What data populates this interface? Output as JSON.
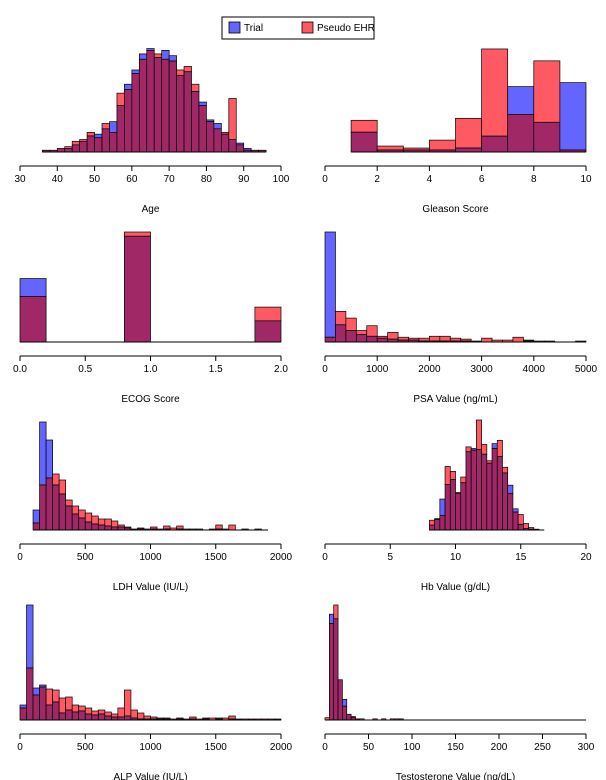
{
  "colors": {
    "trial": "#6464ff",
    "ehr": "#ff5a64",
    "overlap": "#a02866",
    "outline": "#000000"
  },
  "legend": {
    "trial": "Trial",
    "ehr": "Pseudo EHR"
  },
  "chart_data": [
    {
      "type": "histogram",
      "xlabel": "Age",
      "ticks": [
        30,
        40,
        50,
        60,
        70,
        80,
        90,
        100
      ],
      "xlim": [
        30,
        100
      ],
      "bins": [
        36,
        38,
        40,
        42,
        44,
        46,
        48,
        50,
        52,
        54,
        56,
        58,
        60,
        62,
        64,
        66,
        68,
        70,
        72,
        74,
        76,
        78,
        80,
        82,
        84,
        86,
        88,
        90,
        92,
        94,
        96
      ],
      "trial": [
        1,
        1,
        2,
        2,
        4,
        6,
        9,
        10,
        13,
        17,
        26,
        38,
        46,
        55,
        58,
        53,
        57,
        54,
        43,
        45,
        34,
        28,
        18,
        16,
        10,
        7,
        5,
        2,
        1,
        1
      ],
      "ehr": [
        1,
        1,
        2,
        3,
        6,
        7,
        11,
        8,
        16,
        11,
        33,
        35,
        44,
        52,
        57,
        55,
        52,
        51,
        46,
        48,
        38,
        26,
        17,
        13,
        11,
        30,
        4,
        1,
        1,
        1
      ],
      "ymax": 60
    },
    {
      "type": "histogram",
      "xlabel": "Gleason Score",
      "ticks": [
        0,
        2,
        4,
        6,
        8,
        10
      ],
      "xlim": [
        0,
        10
      ],
      "bins": [
        1,
        2,
        3,
        4,
        5,
        6,
        7,
        8,
        9,
        10
      ],
      "trial": [
        10,
        1,
        1,
        1,
        2,
        8,
        33,
        15,
        35
      ],
      "ehr": [
        16,
        3,
        2,
        6,
        17,
        52,
        19,
        46,
        1
      ],
      "ymax": 54
    },
    {
      "type": "histogram",
      "xlabel": "ECOG Score",
      "ticks": [
        0.0,
        0.5,
        1.0,
        1.5,
        2.0
      ],
      "tickfmt": 1,
      "xlim": [
        0,
        2
      ],
      "bins": [
        0,
        0.2,
        0.4,
        0.6,
        0.8,
        1.0,
        1.2,
        1.4,
        1.6,
        1.8,
        2.0
      ],
      "trial": [
        60,
        0,
        0,
        0,
        100,
        0,
        0,
        0,
        0,
        20
      ],
      "ehr": [
        43,
        0,
        0,
        0,
        104,
        0,
        0,
        0,
        0,
        33
      ],
      "ymax": 104
    },
    {
      "type": "histogram",
      "xlabel": "PSA Value (ng/mL)",
      "ticks": [
        0,
        1000,
        2000,
        3000,
        4000,
        5000
      ],
      "xlim": [
        0,
        5000
      ],
      "bins": [
        0,
        200,
        400,
        600,
        800,
        1000,
        1200,
        1400,
        1600,
        1800,
        2000,
        2200,
        2400,
        2600,
        2800,
        3000,
        3200,
        3400,
        3600,
        3800,
        4000,
        4200,
        4400,
        4600,
        4800,
        5000
      ],
      "trial": [
        115,
        18,
        12,
        8,
        6,
        4,
        3,
        2,
        2,
        1,
        1,
        1,
        1,
        1,
        1,
        0,
        0,
        0,
        0,
        1,
        0,
        0,
        0,
        0,
        0
      ],
      "ehr": [
        5,
        32,
        25,
        12,
        17,
        6,
        10,
        5,
        4,
        4,
        6,
        6,
        4,
        3,
        1,
        4,
        2,
        2,
        5,
        2,
        1,
        1,
        0,
        0,
        1
      ],
      "ymax": 115
    },
    {
      "type": "histogram",
      "xlabel": "LDH Value (IU/L)",
      "ticks": [
        0,
        500,
        1000,
        1500,
        2000
      ],
      "xlim": [
        0,
        2000
      ],
      "bins": [
        100,
        150,
        200,
        250,
        300,
        350,
        400,
        450,
        500,
        550,
        600,
        650,
        700,
        750,
        800,
        850,
        900,
        950,
        1000,
        1050,
        1100,
        1150,
        1200,
        1250,
        1300,
        1350,
        1400,
        1450,
        1500,
        1550,
        1600,
        1650,
        1700,
        1750,
        1800,
        1850,
        1900
      ],
      "trial": [
        20,
        108,
        90,
        45,
        36,
        24,
        16,
        12,
        8,
        6,
        5,
        4,
        3,
        3,
        2,
        1,
        1,
        1,
        1,
        0,
        1,
        0,
        1,
        0,
        0,
        1,
        0,
        0,
        1,
        0,
        0,
        0,
        0,
        0,
        1,
        0
      ],
      "ehr": [
        7,
        45,
        52,
        56,
        50,
        30,
        24,
        20,
        17,
        14,
        11,
        11,
        9,
        5,
        3,
        1,
        2,
        0,
        3,
        1,
        4,
        2,
        4,
        1,
        1,
        0,
        0,
        1,
        5,
        1,
        5,
        0,
        1,
        0,
        0,
        0
      ],
      "ymax": 110
    },
    {
      "type": "histogram",
      "xlabel": "Hb Value (g/dL)",
      "ticks": [
        0,
        5,
        10,
        15,
        20
      ],
      "xlim": [
        0,
        20
      ],
      "bins": [
        8.0,
        8.4,
        8.8,
        9.2,
        9.6,
        10.0,
        10.4,
        10.8,
        11.2,
        11.6,
        12.0,
        12.4,
        12.8,
        13.2,
        13.6,
        14.0,
        14.4,
        14.8,
        15.2,
        15.6,
        16.0,
        16.4,
        16.8
      ],
      "trial": [
        6,
        14,
        38,
        56,
        62,
        45,
        58,
        96,
        100,
        99,
        93,
        82,
        106,
        90,
        70,
        55,
        26,
        7,
        2,
        1,
        1,
        0
      ],
      "ehr": [
        12,
        13,
        18,
        78,
        72,
        46,
        65,
        102,
        98,
        135,
        105,
        85,
        100,
        110,
        77,
        45,
        22,
        19,
        8,
        3,
        1,
        0
      ],
      "ymax": 135
    },
    {
      "type": "histogram",
      "xlabel": "ALP Value (IU/L)",
      "ticks": [
        0,
        500,
        1000,
        1500,
        2000
      ],
      "xlim": [
        0,
        2000
      ],
      "bins": [
        0,
        50,
        100,
        150,
        200,
        250,
        300,
        350,
        400,
        450,
        500,
        550,
        600,
        650,
        700,
        750,
        800,
        850,
        900,
        950,
        1000,
        1050,
        1100,
        1150,
        1200,
        1250,
        1300,
        1350,
        1400,
        1450,
        1500,
        1550,
        1600,
        1650,
        1700,
        1750,
        1800,
        1850,
        1900,
        1950,
        2000
      ],
      "trial": [
        15,
        115,
        32,
        35,
        15,
        18,
        7,
        10,
        8,
        9,
        6,
        5,
        6,
        4,
        3,
        3,
        4,
        2,
        1,
        1,
        1,
        1,
        1,
        0,
        1,
        1,
        1,
        0,
        1,
        0,
        1,
        0,
        1,
        1,
        0,
        1,
        0,
        0,
        0,
        1
      ],
      "ehr": [
        12,
        52,
        25,
        33,
        31,
        30,
        22,
        23,
        15,
        14,
        12,
        9,
        10,
        8,
        6,
        12,
        30,
        10,
        7,
        4,
        3,
        2,
        2,
        1,
        2,
        1,
        3,
        1,
        2,
        2,
        2,
        2,
        4,
        1,
        1,
        1,
        1,
        1,
        1,
        1
      ],
      "ymax": 115
    },
    {
      "type": "histogram",
      "xlabel": "Testosterone Value (ng/dL)",
      "ticks": [
        0,
        50,
        100,
        150,
        200,
        250,
        300
      ],
      "xlim": [
        0,
        300
      ],
      "bins": [
        0,
        5,
        10,
        15,
        20,
        25,
        30,
        35,
        40,
        45,
        50,
        55,
        60,
        65,
        70,
        75,
        80,
        85,
        90,
        95,
        100,
        105,
        110,
        115,
        120,
        125,
        130,
        135,
        140,
        145,
        150,
        155,
        160,
        165,
        170,
        175,
        180,
        185,
        190,
        195,
        200,
        205,
        210,
        215,
        220,
        225,
        230,
        235,
        240,
        245,
        250,
        255,
        260,
        265,
        270,
        275,
        280,
        285,
        290,
        295,
        300
      ],
      "trial": [
        0,
        92,
        88,
        35,
        18,
        5,
        2,
        1,
        0,
        0,
        0,
        0,
        0,
        0,
        0,
        0,
        0,
        1,
        0,
        0,
        0,
        0,
        0,
        0,
        0,
        0,
        0,
        0,
        0,
        0,
        0,
        0,
        0,
        0,
        0,
        0,
        0,
        0,
        0,
        0,
        0,
        0,
        0,
        0,
        0,
        0,
        0,
        0,
        0,
        0,
        0,
        0,
        0,
        0,
        0,
        0,
        0,
        0,
        0,
        0
      ],
      "ehr": [
        2,
        84,
        100,
        35,
        12,
        5,
        3,
        1,
        1,
        0,
        0,
        1,
        0,
        1,
        0,
        1,
        1,
        0,
        0,
        0,
        0,
        0,
        0,
        0,
        0,
        0,
        0,
        0,
        0,
        0,
        0,
        0,
        0,
        0,
        0,
        0,
        0,
        0,
        0,
        0,
        0,
        0,
        0,
        0,
        0,
        0,
        0,
        0,
        0,
        0,
        0,
        0,
        0,
        0,
        0,
        0,
        0,
        0,
        0,
        0
      ],
      "ymax": 100
    }
  ]
}
